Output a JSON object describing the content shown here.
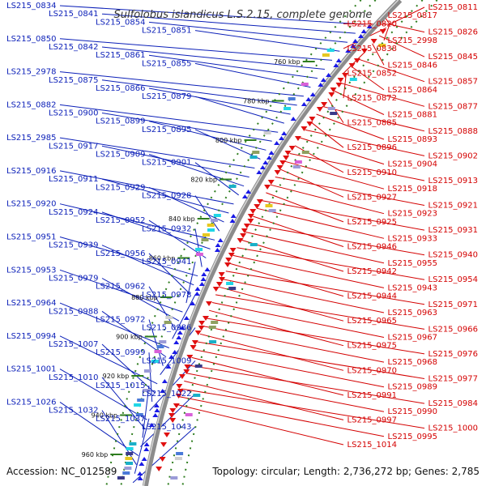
{
  "title": "Sulfolobus islandicus L.S.2.15, complete genome",
  "footer": {
    "accession": "Accession: NC_012589",
    "summary": "Topology: circular; Length: 2,736,272 bp; Genes: 2,785"
  },
  "colors": {
    "forward_label": "#0b1fb8",
    "reverse_label": "#d40000",
    "forward_feature": "#1a1ae6",
    "reverse_feature": "#e01010",
    "backbone": "#8c8c8c",
    "tick": "#2e7d1e"
  },
  "ticks": [
    "760 kbp",
    "780 kbp",
    "800 kbp",
    "820 kbp",
    "840 kbp",
    "860 kbp",
    "880 kbp",
    "900 kbp",
    "920 kbp",
    "940 kbp",
    "960 kbp"
  ],
  "forward_labels": [
    "LS215_0834",
    "LS215_0841",
    "LS215_0854",
    "LS215_0851",
    "LS215_0850",
    "LS215_0842",
    "LS215_0861",
    "LS215_0855",
    "LS215_2978",
    "LS215_0875",
    "LS215_0866",
    "LS215_0879",
    "LS215_0882",
    "LS215_0900",
    "LS215_0899",
    "LS215_0895",
    "LS215_2985",
    "LS215_0917",
    "LS215_0909",
    "LS215_0901",
    "LS215_0916",
    "LS215_0911",
    "LS215_0929",
    "LS215_0928",
    "LS215_0920",
    "LS215_0924",
    "LS215_0952",
    "LS215_0932",
    "LS215_0951",
    "LS215_0939",
    "LS215_0956",
    "LS215_0941",
    "LS215_0953",
    "LS215_0979",
    "LS215_0962",
    "LS215_0978",
    "LS215_0964",
    "LS215_0988",
    "LS215_0972",
    "LS215_0986",
    "LS215_0994",
    "LS215_1007",
    "LS215_0999",
    "LS215_1009",
    "LS215_1001",
    "LS215_1010",
    "LS215_1015",
    "LS215_1022",
    "LS215_1026",
    "LS215_1032",
    "LS215_1037",
    "LS215_1043"
  ],
  "reverse_labels": [
    "LS215_0811",
    "LS215_0817",
    "LS215_0820",
    "LS215_0826",
    "LS215_2998",
    "LS215_0838",
    "LS215_0845",
    "LS215_0846",
    "LS215_0852",
    "LS215_0857",
    "LS215_0864",
    "LS215_0872",
    "LS215_0877",
    "LS215_0881",
    "LS215_0885",
    "LS215_0888",
    "LS215_0893",
    "LS215_0896",
    "LS215_0902",
    "LS215_0904",
    "LS215_0910",
    "LS215_0913",
    "LS215_0918",
    "LS215_0927",
    "LS215_0921",
    "LS215_0923",
    "LS215_0925",
    "LS215_0931",
    "LS215_0933",
    "LS215_0946",
    "LS215_0940",
    "LS215_0955",
    "LS215_0942",
    "LS215_0954",
    "LS215_0943",
    "LS215_0944",
    "LS215_0971",
    "LS215_0963",
    "LS215_0965",
    "LS215_0966",
    "LS215_0967",
    "LS215_0975",
    "LS215_0976",
    "LS215_0968",
    "LS215_0970",
    "LS215_0977",
    "LS215_0989",
    "LS215_0991",
    "LS215_0984",
    "LS215_0990",
    "LS215_0997",
    "LS215_1000",
    "LS215_0995",
    "LS215_1014"
  ]
}
